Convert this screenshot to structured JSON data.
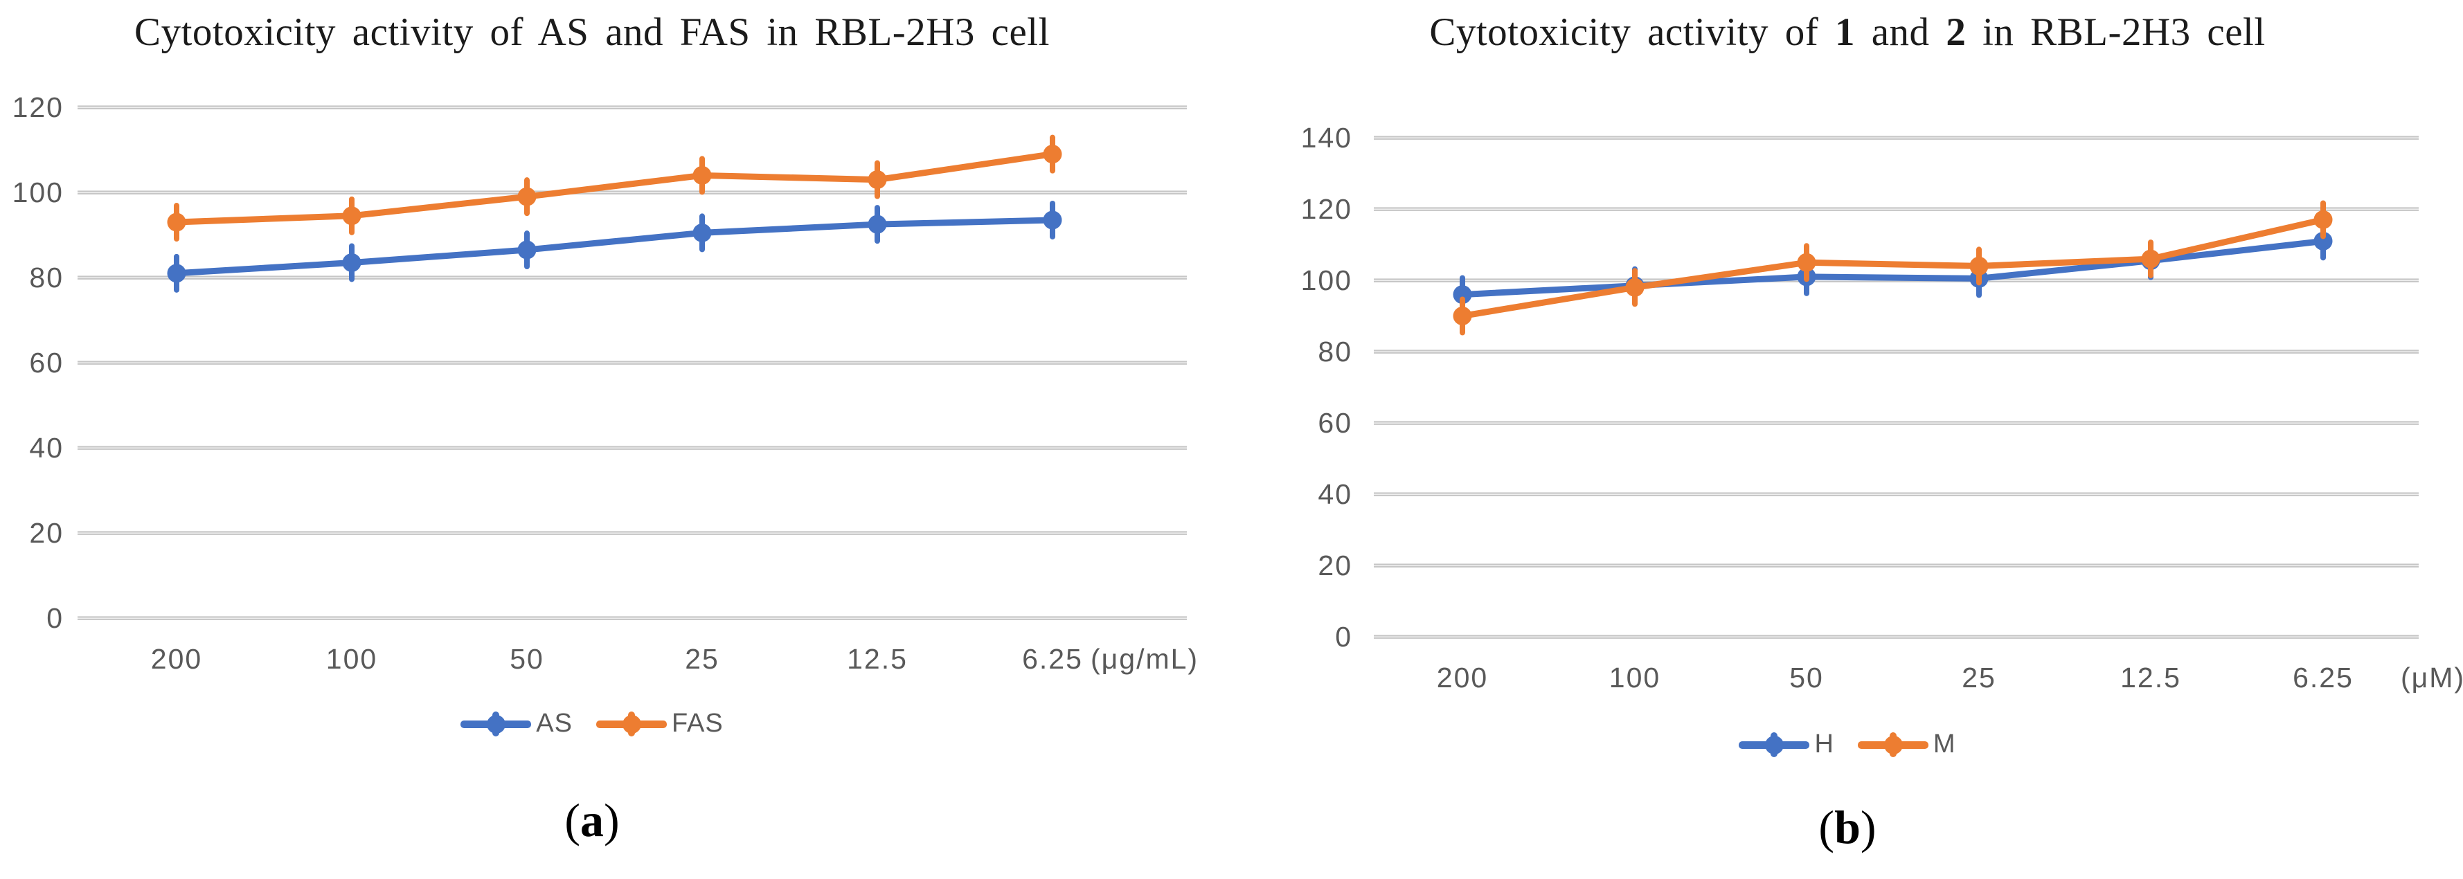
{
  "figure": {
    "background": "#ffffff",
    "series_colors": {
      "blue": "#4472C4",
      "orange": "#ED7D31"
    },
    "gridline_color": "#c6c6c6",
    "axis_text_color": "#595959"
  },
  "chart_data": [
    {
      "type": "line",
      "title": "Cytotoxicity activity of AS and FAS in RBL-2H3 cell",
      "title_parts": [
        {
          "text": "Cytotoxicity activity of AS and FAS in RBL-2H3 cell",
          "bold": false
        }
      ],
      "caption": "(a)",
      "caption_parts": [
        {
          "text": "(",
          "bold": false
        },
        {
          "text": "a",
          "bold": true
        },
        {
          "text": ")",
          "bold": false
        }
      ],
      "categories": [
        "200",
        "100",
        "50",
        "25",
        "12.5",
        "6.25"
      ],
      "x_unit": "(μg/mL)",
      "xlabel": "",
      "ylabel": "",
      "ylim": [
        0,
        120
      ],
      "yticks": [
        0,
        20,
        40,
        60,
        80,
        100,
        120
      ],
      "grid": true,
      "legend_position": "bottom",
      "series": [
        {
          "name": "AS",
          "color": "#4472C4",
          "values": [
            81,
            83.5,
            86.5,
            90.5,
            92.5,
            93.5
          ]
        },
        {
          "name": "FAS",
          "color": "#ED7D31",
          "values": [
            93,
            94.5,
            99,
            104,
            103,
            109
          ]
        }
      ]
    },
    {
      "type": "line",
      "title": "Cytotoxicity activity of 1 and 2 in RBL-2H3 cell",
      "title_parts": [
        {
          "text": "Cytotoxicity activity of ",
          "bold": false
        },
        {
          "text": "1",
          "bold": true
        },
        {
          "text": " and ",
          "bold": false
        },
        {
          "text": "2",
          "bold": true
        },
        {
          "text": " in RBL-2H3 cell",
          "bold": false
        }
      ],
      "caption": "(b)",
      "caption_parts": [
        {
          "text": "(",
          "bold": false
        },
        {
          "text": "b",
          "bold": true
        },
        {
          "text": ")",
          "bold": false
        }
      ],
      "categories": [
        "200",
        "100",
        "50",
        "25",
        "12.5",
        "6.25"
      ],
      "x_unit": "(μM)",
      "xlabel": "",
      "ylabel": "",
      "ylim": [
        0,
        140
      ],
      "yticks": [
        0,
        20,
        40,
        60,
        80,
        100,
        120,
        140
      ],
      "grid": true,
      "legend_position": "bottom",
      "series": [
        {
          "name": "H",
          "color": "#4472C4",
          "values": [
            96,
            98.5,
            101,
            100.5,
            105.5,
            111
          ]
        },
        {
          "name": "M",
          "color": "#ED7D31",
          "values": [
            90,
            98,
            105,
            104,
            106,
            117
          ]
        }
      ]
    }
  ]
}
